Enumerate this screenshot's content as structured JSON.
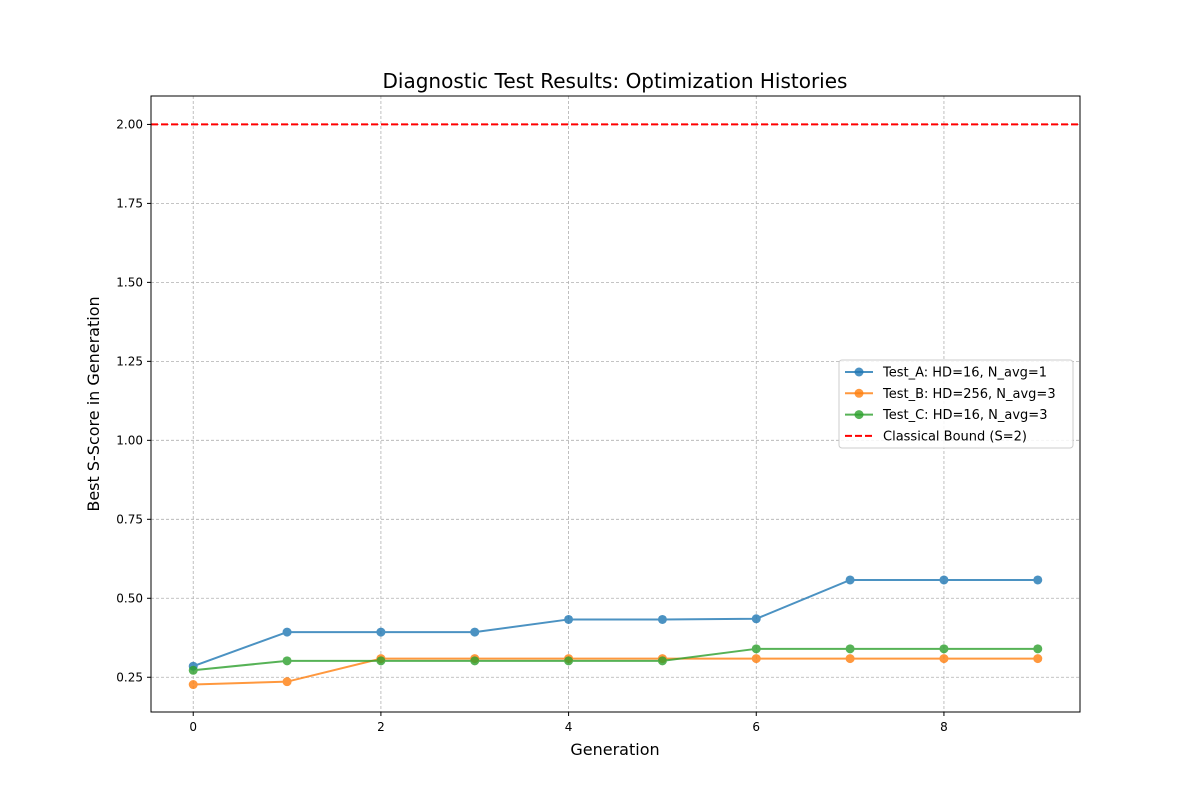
{
  "chart_data": {
    "type": "line",
    "title": "Diagnostic Test Results: Optimization Histories",
    "xlabel": "Generation",
    "ylabel": "Best S-Score in Generation",
    "xlim": [
      -0.45,
      9.45
    ],
    "ylim": [
      0.14,
      2.09
    ],
    "xticks": [
      0,
      2,
      4,
      6,
      8
    ],
    "xtick_labels": [
      "0",
      "2",
      "4",
      "6",
      "8"
    ],
    "yticks": [
      0.25,
      0.5,
      0.75,
      1.0,
      1.25,
      1.5,
      1.75,
      2.0
    ],
    "ytick_labels": [
      "0.25",
      "0.50",
      "0.75",
      "1.00",
      "1.25",
      "1.50",
      "1.75",
      "2.00"
    ],
    "grid": true,
    "legend_position": "center-right",
    "x": [
      0,
      1,
      2,
      3,
      4,
      5,
      6,
      7,
      8,
      9
    ],
    "series": [
      {
        "name": "Test_A: HD=16, N_avg=1",
        "color": "#1f77b4",
        "marker": "circle",
        "values": [
          0.285,
          0.393,
          0.393,
          0.393,
          0.433,
          0.433,
          0.435,
          0.558,
          0.558,
          0.558
        ]
      },
      {
        "name": "Test_B: HD=256, N_avg=3",
        "color": "#ff7f0e",
        "marker": "circle",
        "values": [
          0.227,
          0.236,
          0.309,
          0.309,
          0.309,
          0.309,
          0.309,
          0.309,
          0.309,
          0.309
        ]
      },
      {
        "name": "Test_C: HD=16, N_avg=3",
        "color": "#2ca02c",
        "marker": "circle",
        "values": [
          0.272,
          0.302,
          0.302,
          0.302,
          0.302,
          0.302,
          0.34,
          0.34,
          0.34,
          0.34
        ]
      }
    ],
    "reference_lines": [
      {
        "name": "Classical Bound (S=2)",
        "y": 2.0,
        "color": "#ff0000",
        "style": "dashed"
      }
    ]
  }
}
